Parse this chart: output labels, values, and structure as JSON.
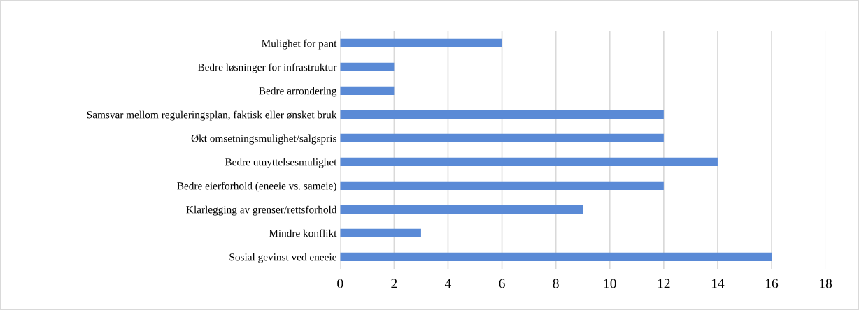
{
  "chart_data": {
    "type": "bar",
    "orientation": "horizontal",
    "categories": [
      "Mulighet for pant",
      "Bedre løsninger for infrastruktur",
      "Bedre arrondering",
      "Samsvar mellom reguleringsplan, faktisk eller ønsket bruk",
      "Økt omsetningsmulighet/salgspris",
      "Bedre utnyttelsesmulighet",
      "Bedre eierforhold (eneeie vs. sameie)",
      "Klarlegging av grenser/rettsforhold",
      "Mindre konflikt",
      "Sosial gevinst ved eneeie"
    ],
    "values": [
      6,
      2,
      2,
      12,
      12,
      14,
      12,
      9,
      3,
      16
    ],
    "color": "#5a8ad6",
    "xlim": [
      0,
      18
    ],
    "xticks": [
      0,
      2,
      4,
      6,
      8,
      10,
      12,
      14,
      16,
      18
    ],
    "grid": "x",
    "legend": false
  }
}
